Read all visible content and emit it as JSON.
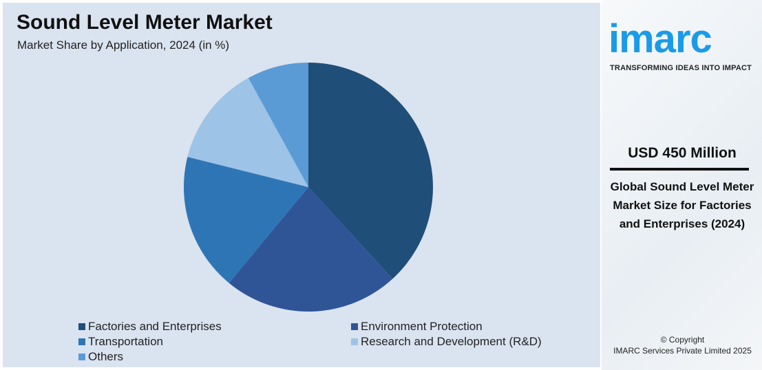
{
  "header": {
    "title": "Sound Level Meter Market",
    "subtitle": "Market Share by Application, 2024 (in %)"
  },
  "chart_data": {
    "type": "pie",
    "title": "Sound Level Meter Market",
    "subtitle": "Market Share by Application, 2024 (in %)",
    "legend_position": "bottom",
    "categories": [
      "Factories and Enterprises",
      "Environment Protection",
      "Transportation",
      "Research and Development (R&D)",
      "Others"
    ],
    "values": [
      38.2,
      22.8,
      17.9,
      13.1,
      8.0
    ],
    "colors": [
      "#1f4e79",
      "#2f5597",
      "#2e75b6",
      "#9dc3e6",
      "#5b9bd5"
    ]
  },
  "sidebar": {
    "logo_text": "imarc",
    "tagline": "TRANSFORMING IDEAS INTO IMPACT",
    "value": "USD 450 Million",
    "description": "Global Sound Level Meter Market Size for Factories and Enterprises (2024)",
    "copyright_line1": "© Copyright",
    "copyright_line2": "IMARC Services Private Limited 2025"
  }
}
